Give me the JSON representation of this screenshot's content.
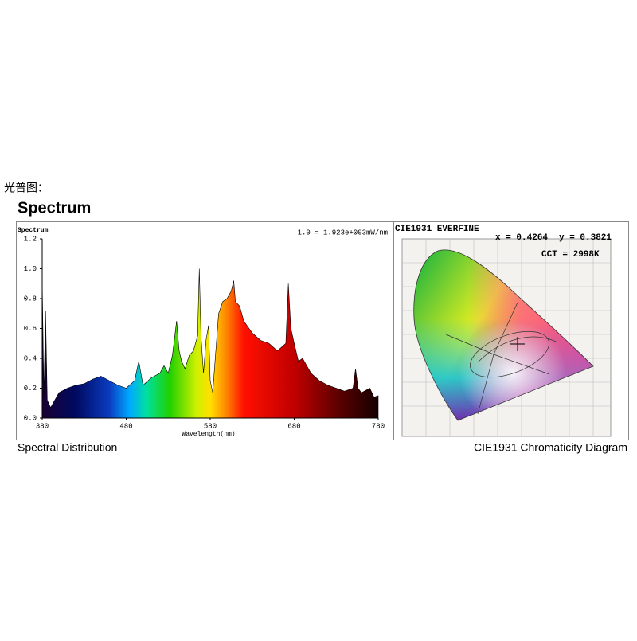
{
  "header": {
    "label": "光普图：",
    "title": "Spectrum"
  },
  "chart_data": [
    {
      "type": "area",
      "title": "Spectrum",
      "subtitle": "1.0 = 1.923e+003mW/nm",
      "xlabel": "Wavelength(nm)",
      "caption": "Spectral Distribution",
      "x": [
        380,
        382,
        384,
        386,
        390,
        400,
        410,
        420,
        430,
        440,
        450,
        460,
        470,
        480,
        490,
        495,
        500,
        510,
        520,
        525,
        530,
        535,
        540,
        543,
        546,
        550,
        555,
        560,
        565,
        567,
        569,
        572,
        575,
        578,
        580,
        583,
        586,
        590,
        595,
        600,
        605,
        608,
        610,
        615,
        620,
        630,
        640,
        650,
        660,
        670,
        673,
        676,
        680,
        685,
        690,
        700,
        710,
        720,
        730,
        740,
        750,
        753,
        756,
        760,
        770,
        775,
        780
      ],
      "values": [
        0.93,
        0.15,
        0.72,
        0.12,
        0.07,
        0.17,
        0.2,
        0.22,
        0.23,
        0.26,
        0.28,
        0.25,
        0.22,
        0.2,
        0.25,
        0.38,
        0.22,
        0.27,
        0.3,
        0.35,
        0.3,
        0.42,
        0.65,
        0.45,
        0.38,
        0.33,
        0.42,
        0.45,
        0.55,
        1.0,
        0.55,
        0.3,
        0.52,
        0.62,
        0.25,
        0.17,
        0.4,
        0.7,
        0.78,
        0.8,
        0.85,
        0.92,
        0.78,
        0.75,
        0.65,
        0.57,
        0.52,
        0.5,
        0.45,
        0.5,
        0.9,
        0.6,
        0.5,
        0.38,
        0.4,
        0.3,
        0.25,
        0.22,
        0.2,
        0.18,
        0.2,
        0.33,
        0.2,
        0.17,
        0.2,
        0.14,
        0.15
      ],
      "xlim": [
        380,
        780
      ],
      "ylim": [
        0,
        1.2
      ],
      "xticks": [
        380,
        480,
        580,
        680,
        780
      ],
      "yticks": [
        {
          "value": 0,
          "label": "0.0"
        },
        0.2,
        0.4,
        0.6,
        0.8,
        {
          "value": 1,
          "label": "1.0"
        },
        1.2
      ]
    },
    {
      "type": "chromaticity",
      "title": "CIE1931  EVERFINE",
      "caption": "CIE1931 Chromaticity Diagram",
      "annotations": [
        "x = 0.4264",
        "y = 0.3821",
        "CCT = 2998K"
      ]
    }
  ]
}
